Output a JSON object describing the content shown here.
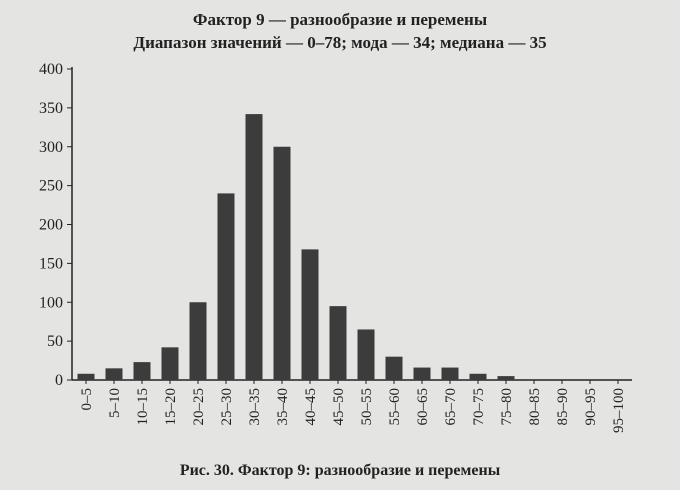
{
  "figure": {
    "title": "Фактор 9 — разнообразие и перемены",
    "subtitle": "Диапазон значений — 0–78; мода — 34; медиана — 35",
    "caption": "Рис. 30.  Фактор 9:  разнообразие и перемены"
  },
  "chart_data": {
    "type": "bar",
    "title": "Фактор 9 — разнообразие и перемены",
    "subtitle": "Диапазон значений — 0–78; мода — 34; медиана — 35",
    "categories": [
      "0–5",
      "5–10",
      "10–15",
      "15–20",
      "20–25",
      "25–30",
      "30–35",
      "35–40",
      "40–45",
      "45–50",
      "50–55",
      "55–60",
      "60–65",
      "65–70",
      "70–75",
      "75–80",
      "80–85",
      "85–90",
      "90–95",
      "95–100"
    ],
    "values": [
      8,
      15,
      23,
      42,
      100,
      240,
      342,
      300,
      168,
      95,
      65,
      30,
      16,
      16,
      8,
      5,
      0,
      0,
      0,
      0
    ],
    "y_ticks": [
      "0",
      "50",
      "100",
      "150",
      "200",
      "250",
      "300",
      "350",
      "400"
    ],
    "ylim": [
      0,
      400
    ],
    "xlabel": "",
    "ylabel": "",
    "grid": false,
    "colors": {
      "bar": "#3c3c3c",
      "axis": "#222222"
    }
  }
}
